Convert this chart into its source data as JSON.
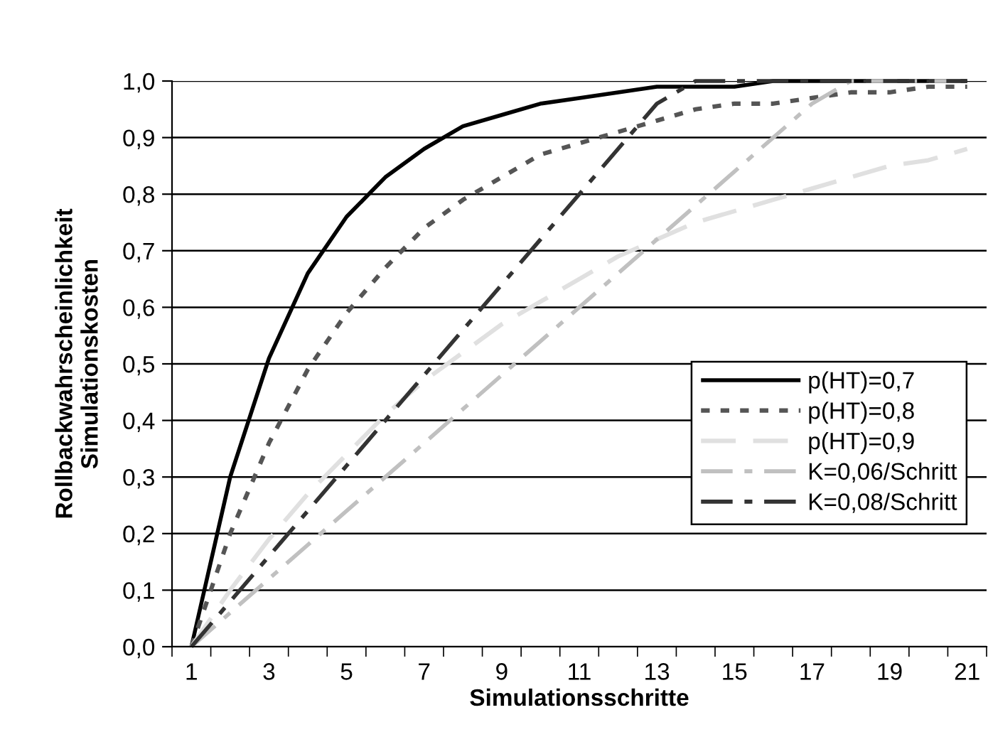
{
  "chart_data": {
    "type": "line",
    "xlabel": "Simulationsschritte",
    "ylabel": "Rollbackwahrscheinlichkeit\nSimulationskosten",
    "categories": [
      "1",
      null,
      "3",
      null,
      "5",
      null,
      "7",
      null,
      "9",
      null,
      "11",
      null,
      "13",
      null,
      "15",
      null,
      "17",
      null,
      "19",
      null,
      "21"
    ],
    "series": [
      {
        "name": "p(HT)=0,7",
        "color": "#000000",
        "line_style": "solid",
        "values": [
          0,
          0.3,
          0.51,
          0.66,
          0.76,
          0.83,
          0.88,
          0.92,
          0.94,
          0.96,
          0.97,
          0.98,
          0.99,
          0.99,
          0.99,
          1.0,
          1.0,
          1.0,
          1.0,
          1.0,
          1.0
        ]
      },
      {
        "name": "p(HT)=0,8",
        "color": "#555555",
        "line_style": "dotted",
        "values": [
          0,
          0.2,
          0.36,
          0.49,
          0.59,
          0.67,
          0.74,
          0.79,
          0.83,
          0.87,
          0.89,
          0.91,
          0.93,
          0.95,
          0.96,
          0.96,
          0.97,
          0.98,
          0.98,
          0.99,
          0.99
        ]
      },
      {
        "name": "p(HT)=0,9",
        "color": "#e0e0e0",
        "line_style": "dashed",
        "values": [
          0,
          0.1,
          0.19,
          0.27,
          0.34,
          0.41,
          0.47,
          0.52,
          0.57,
          0.61,
          0.65,
          0.69,
          0.72,
          0.75,
          0.77,
          0.79,
          0.81,
          0.83,
          0.85,
          0.86,
          0.88
        ]
      },
      {
        "name": "K=0,06/Schritt",
        "color": "#c0c0c0",
        "line_style": "dashdot",
        "values": [
          0,
          0.06,
          0.12,
          0.18,
          0.24,
          0.3,
          0.36,
          0.42,
          0.48,
          0.54,
          0.6,
          0.66,
          0.72,
          0.78,
          0.84,
          0.9,
          0.96,
          1.0,
          1.0,
          1.0,
          1.0
        ]
      },
      {
        "name": "K=0,08/Schritt",
        "color": "#333333",
        "line_style": "dashdot",
        "values": [
          0,
          0.08,
          0.16,
          0.24,
          0.32,
          0.4,
          0.48,
          0.56,
          0.64,
          0.72,
          0.8,
          0.88,
          0.96,
          1.0,
          1.0,
          1.0,
          1.0,
          1.0,
          1.0,
          1.0,
          1.0
        ]
      }
    ],
    "ylim": [
      0,
      1
    ],
    "yticks": [
      {
        "value": 0,
        "label": "0,0"
      },
      {
        "value": 0.1,
        "label": "0,1"
      },
      {
        "value": 0.2,
        "label": "0,2"
      },
      {
        "value": 0.3,
        "label": "0,3"
      },
      {
        "value": 0.4,
        "label": "0,4"
      },
      {
        "value": 0.5,
        "label": "0,5"
      },
      {
        "value": 0.6,
        "label": "0,6"
      },
      {
        "value": 0.7,
        "label": "0,7"
      },
      {
        "value": 0.8,
        "label": "0,8"
      },
      {
        "value": 0.9,
        "label": "0,9"
      },
      {
        "value": 1.0,
        "label": "1,0"
      }
    ],
    "grid": "y",
    "legend": "right",
    "marker": "none"
  }
}
